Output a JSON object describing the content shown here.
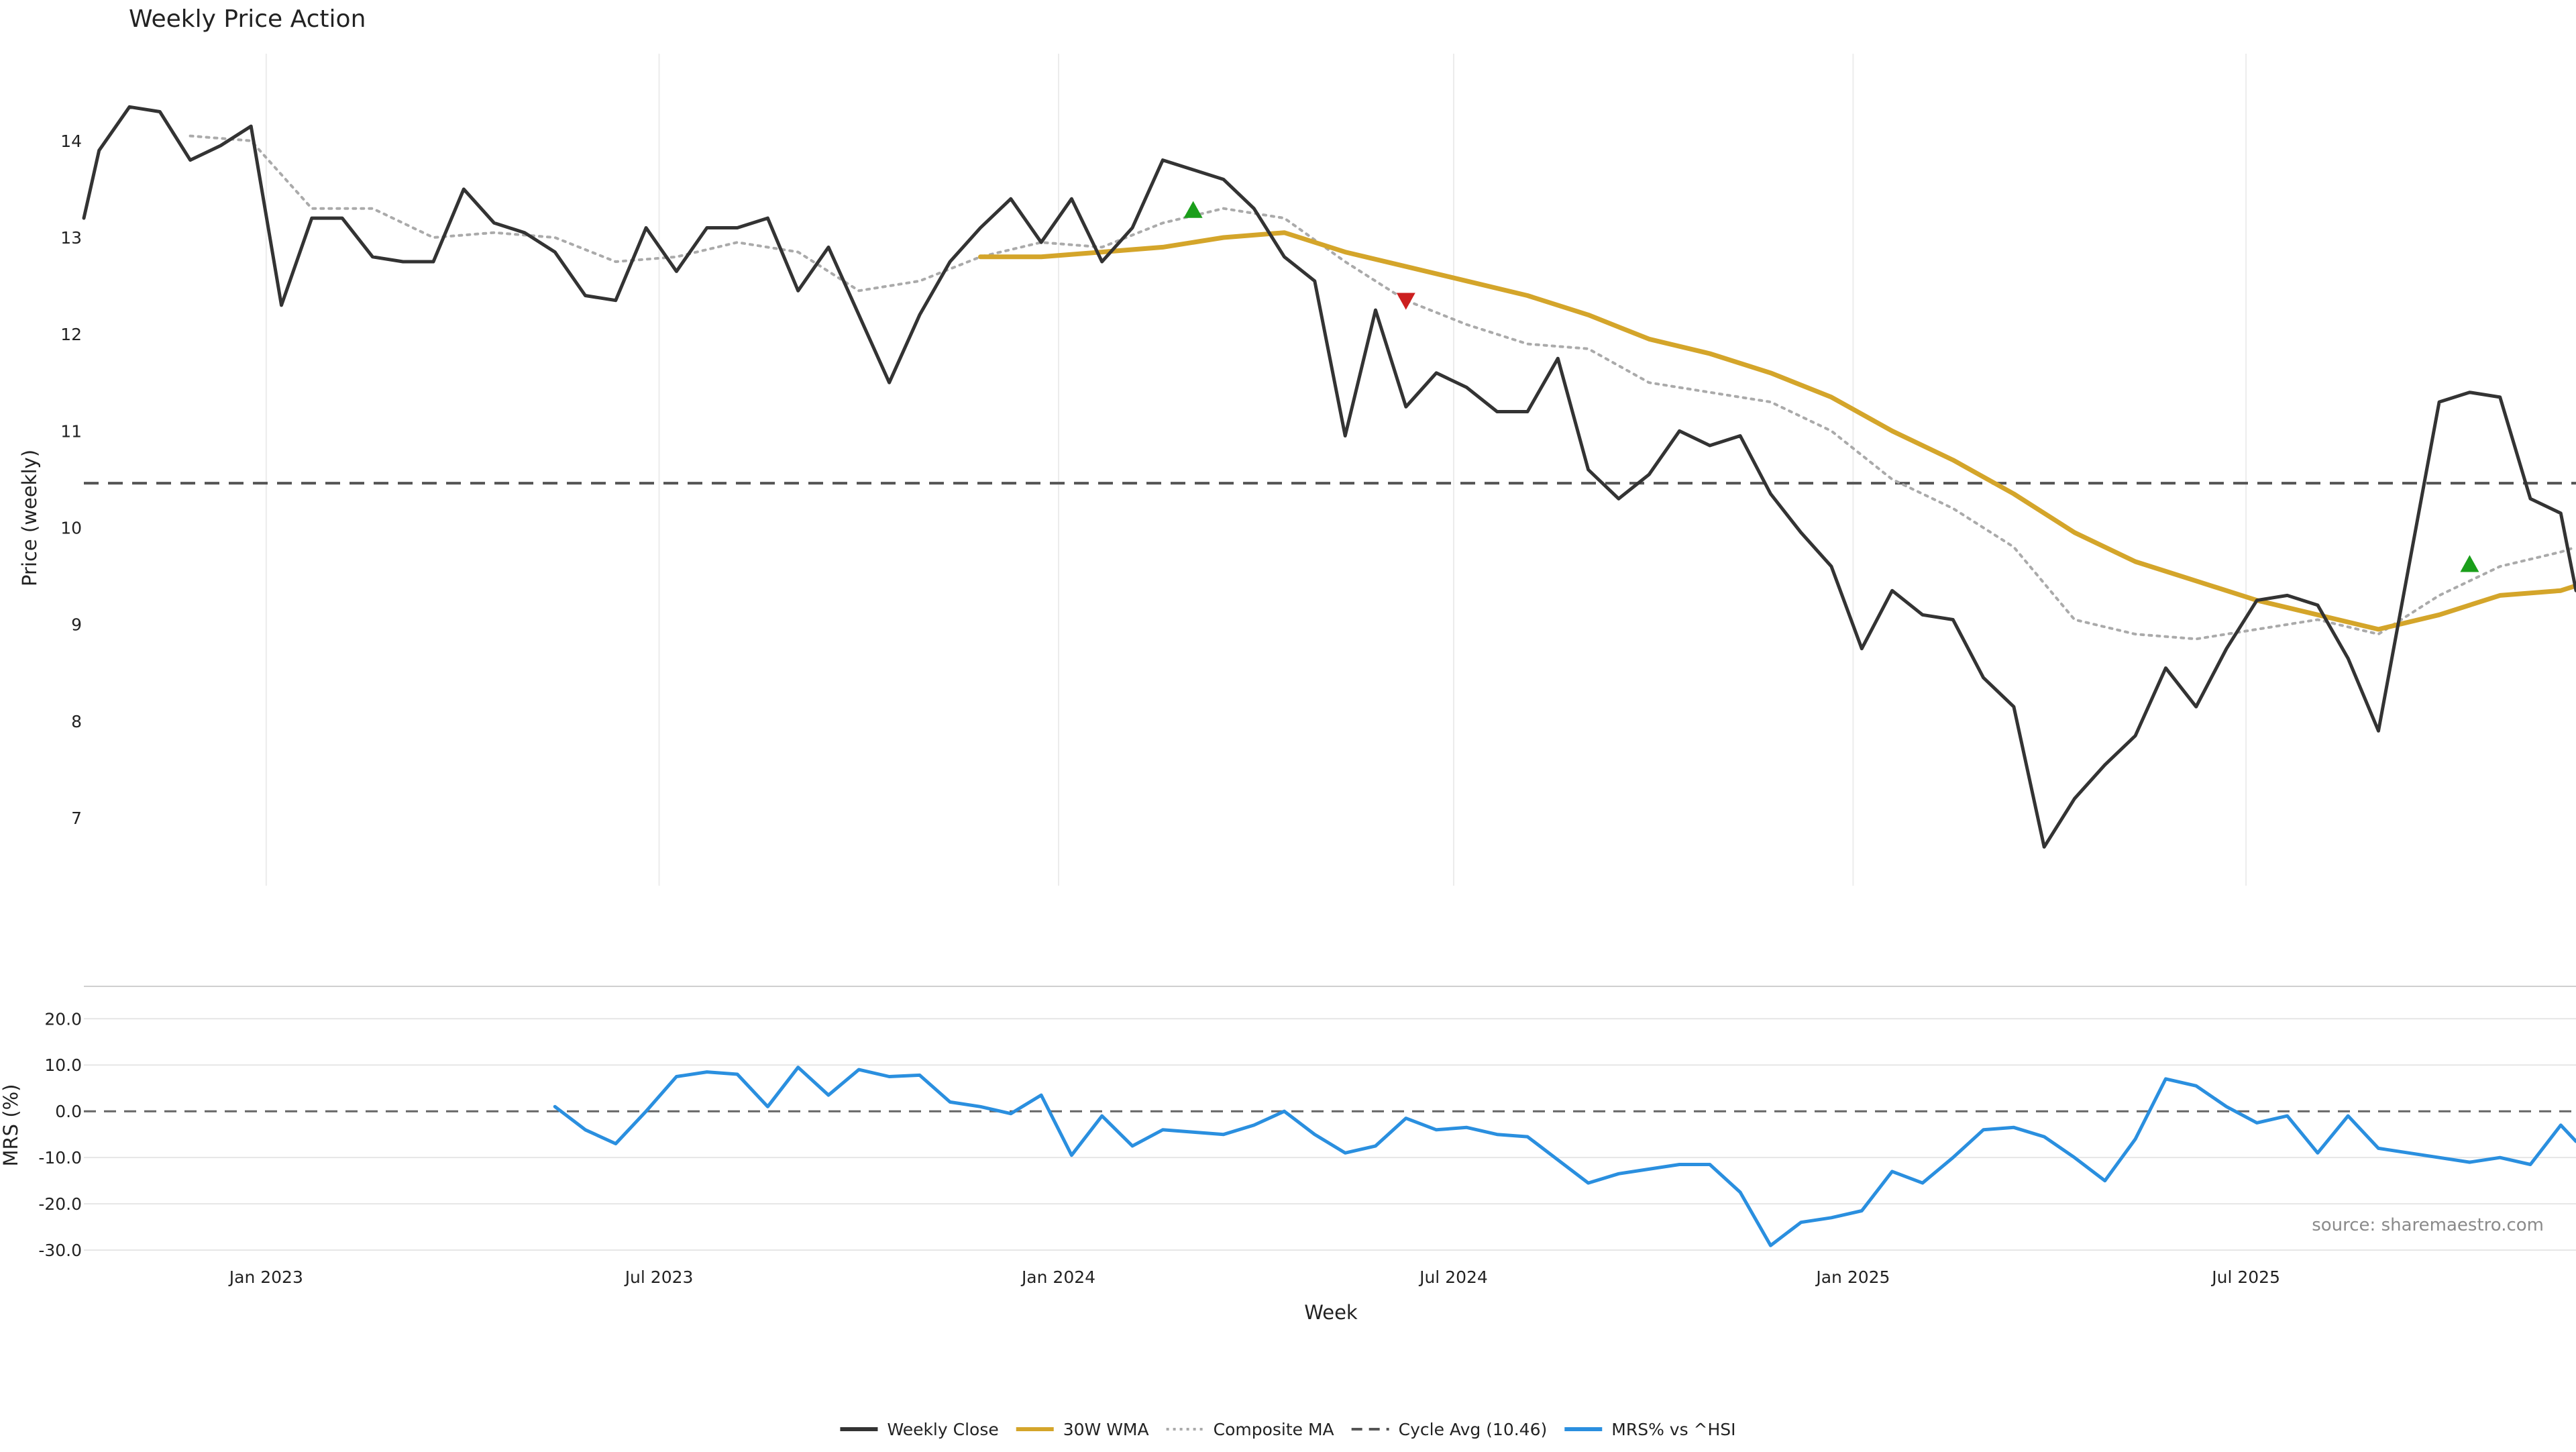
{
  "chart_data": {
    "type": "line",
    "title": "Weekly Price Action",
    "source": "source: sharemaestro.com",
    "xlabel": "Week",
    "x_tick_labels": [
      "Jan 2023",
      "Jul 2023",
      "Jan 2024",
      "Jul 2024",
      "Jan 2025",
      "Jul 2025"
    ],
    "x_tick_dates": [
      "2023-01-01",
      "2023-07-01",
      "2024-01-01",
      "2024-07-01",
      "2025-01-01",
      "2025-07-01"
    ],
    "x_range": [
      "2022-10-09",
      "2025-11-30"
    ],
    "grid": true,
    "legend_placement": "bottom-center",
    "price_panel": {
      "ylabel": "Price (weekly)",
      "ylim": [
        6.3,
        14.9
      ],
      "y_ticks": [
        7,
        8,
        9,
        10,
        11,
        12,
        13,
        14
      ],
      "cycle_avg": 10.46,
      "series": [
        {
          "name": "Weekly Close",
          "color": "#333333",
          "style": "solid",
          "points": [
            [
              "2022-10-09",
              13.2
            ],
            [
              "2022-10-16",
              13.9
            ],
            [
              "2022-10-30",
              14.35
            ],
            [
              "2022-11-13",
              14.3
            ],
            [
              "2022-11-27",
              13.8
            ],
            [
              "2022-12-11",
              13.95
            ],
            [
              "2022-12-25",
              14.15
            ],
            [
              "2023-01-08",
              12.3
            ],
            [
              "2023-01-22",
              13.2
            ],
            [
              "2023-02-05",
              13.2
            ],
            [
              "2023-02-19",
              12.8
            ],
            [
              "2023-03-05",
              12.75
            ],
            [
              "2023-03-19",
              12.75
            ],
            [
              "2023-04-02",
              13.5
            ],
            [
              "2023-04-16",
              13.15
            ],
            [
              "2023-04-30",
              13.05
            ],
            [
              "2023-05-14",
              12.85
            ],
            [
              "2023-05-28",
              12.4
            ],
            [
              "2023-06-11",
              12.35
            ],
            [
              "2023-06-25",
              13.1
            ],
            [
              "2023-07-09",
              12.65
            ],
            [
              "2023-07-23",
              13.1
            ],
            [
              "2023-08-06",
              13.1
            ],
            [
              "2023-08-20",
              13.2
            ],
            [
              "2023-09-03",
              12.45
            ],
            [
              "2023-09-17",
              12.9
            ],
            [
              "2023-10-01",
              12.2
            ],
            [
              "2023-10-15",
              11.5
            ],
            [
              "2023-10-29",
              12.2
            ],
            [
              "2023-11-12",
              12.75
            ],
            [
              "2023-11-26",
              13.1
            ],
            [
              "2023-12-10",
              13.4
            ],
            [
              "2023-12-24",
              12.95
            ],
            [
              "2024-01-07",
              13.4
            ],
            [
              "2024-01-21",
              12.75
            ],
            [
              "2024-02-04",
              13.1
            ],
            [
              "2024-02-18",
              13.8
            ],
            [
              "2024-03-03",
              13.7
            ],
            [
              "2024-03-17",
              13.6
            ],
            [
              "2024-03-31",
              13.3
            ],
            [
              "2024-04-14",
              12.8
            ],
            [
              "2024-04-28",
              12.55
            ],
            [
              "2024-05-12",
              10.95
            ],
            [
              "2024-05-26",
              12.25
            ],
            [
              "2024-06-09",
              11.25
            ],
            [
              "2024-06-23",
              11.6
            ],
            [
              "2024-07-07",
              11.45
            ],
            [
              "2024-07-21",
              11.2
            ],
            [
              "2024-08-04",
              11.2
            ],
            [
              "2024-08-18",
              11.75
            ],
            [
              "2024-09-01",
              10.6
            ],
            [
              "2024-09-15",
              10.3
            ],
            [
              "2024-09-29",
              10.55
            ],
            [
              "2024-10-13",
              11.0
            ],
            [
              "2024-10-27",
              10.85
            ],
            [
              "2024-11-10",
              10.95
            ],
            [
              "2024-11-24",
              10.35
            ],
            [
              "2024-12-08",
              9.95
            ],
            [
              "2024-12-22",
              9.6
            ],
            [
              "2025-01-05",
              8.75
            ],
            [
              "2025-01-19",
              9.35
            ],
            [
              "2025-02-02",
              9.1
            ],
            [
              "2025-02-16",
              9.05
            ],
            [
              "2025-03-02",
              8.45
            ],
            [
              "2025-03-16",
              8.15
            ],
            [
              "2025-03-30",
              6.7
            ],
            [
              "2025-04-13",
              7.2
            ],
            [
              "2025-04-27",
              7.55
            ],
            [
              "2025-05-11",
              7.85
            ],
            [
              "2025-05-25",
              8.55
            ],
            [
              "2025-06-08",
              8.15
            ],
            [
              "2025-06-22",
              8.75
            ],
            [
              "2025-07-06",
              9.25
            ],
            [
              "2025-07-20",
              9.3
            ],
            [
              "2025-08-03",
              9.2
            ],
            [
              "2025-08-17",
              8.65
            ],
            [
              "2025-08-31",
              7.9
            ],
            [
              "2025-09-14",
              9.6
            ],
            [
              "2025-09-28",
              11.3
            ],
            [
              "2025-10-12",
              11.4
            ],
            [
              "2025-10-26",
              11.35
            ],
            [
              "2025-11-09",
              10.3
            ],
            [
              "2025-11-23",
              10.15
            ],
            [
              "2025-11-30",
              9.35
            ]
          ]
        },
        {
          "name": "30W WMA",
          "color": "#d4a52a",
          "style": "solid",
          "points": [
            [
              "2023-11-26",
              12.8
            ],
            [
              "2023-12-24",
              12.8
            ],
            [
              "2024-01-21",
              12.85
            ],
            [
              "2024-02-18",
              12.9
            ],
            [
              "2024-03-17",
              13.0
            ],
            [
              "2024-04-14",
              13.05
            ],
            [
              "2024-05-12",
              12.85
            ],
            [
              "2024-06-09",
              12.7
            ],
            [
              "2024-07-07",
              12.55
            ],
            [
              "2024-08-04",
              12.4
            ],
            [
              "2024-09-01",
              12.2
            ],
            [
              "2024-09-29",
              11.95
            ],
            [
              "2024-10-27",
              11.8
            ],
            [
              "2024-11-24",
              11.6
            ],
            [
              "2024-12-22",
              11.35
            ],
            [
              "2025-01-19",
              11.0
            ],
            [
              "2025-02-16",
              10.7
            ],
            [
              "2025-03-16",
              10.35
            ],
            [
              "2025-04-13",
              9.95
            ],
            [
              "2025-05-11",
              9.65
            ],
            [
              "2025-06-08",
              9.45
            ],
            [
              "2025-07-06",
              9.25
            ],
            [
              "2025-08-03",
              9.1
            ],
            [
              "2025-08-31",
              8.95
            ],
            [
              "2025-09-28",
              9.1
            ],
            [
              "2025-10-26",
              9.3
            ],
            [
              "2025-11-23",
              9.35
            ],
            [
              "2025-11-30",
              9.4
            ]
          ]
        },
        {
          "name": "Composite MA",
          "color": "#aaaaaa",
          "style": "dotted",
          "points": [
            [
              "2022-11-27",
              14.05
            ],
            [
              "2022-12-25",
              14.0
            ],
            [
              "2023-01-22",
              13.3
            ],
            [
              "2023-02-19",
              13.3
            ],
            [
              "2023-03-19",
              13.0
            ],
            [
              "2023-04-16",
              13.05
            ],
            [
              "2023-05-14",
              13.0
            ],
            [
              "2023-06-11",
              12.75
            ],
            [
              "2023-07-09",
              12.8
            ],
            [
              "2023-08-06",
              12.95
            ],
            [
              "2023-09-03",
              12.85
            ],
            [
              "2023-10-01",
              12.45
            ],
            [
              "2023-10-29",
              12.55
            ],
            [
              "2023-11-26",
              12.8
            ],
            [
              "2023-12-24",
              12.95
            ],
            [
              "2024-01-21",
              12.9
            ],
            [
              "2024-02-18",
              13.15
            ],
            [
              "2024-03-17",
              13.3
            ],
            [
              "2024-04-14",
              13.2
            ],
            [
              "2024-05-12",
              12.75
            ],
            [
              "2024-06-09",
              12.35
            ],
            [
              "2024-07-07",
              12.1
            ],
            [
              "2024-08-04",
              11.9
            ],
            [
              "2024-09-01",
              11.85
            ],
            [
              "2024-09-29",
              11.5
            ],
            [
              "2024-10-27",
              11.4
            ],
            [
              "2024-11-24",
              11.3
            ],
            [
              "2024-12-22",
              11.0
            ],
            [
              "2025-01-19",
              10.5
            ],
            [
              "2025-02-16",
              10.2
            ],
            [
              "2025-03-16",
              9.8
            ],
            [
              "2025-04-13",
              9.05
            ],
            [
              "2025-05-11",
              8.9
            ],
            [
              "2025-06-08",
              8.85
            ],
            [
              "2025-07-06",
              8.95
            ],
            [
              "2025-08-03",
              9.05
            ],
            [
              "2025-08-31",
              8.9
            ],
            [
              "2025-09-28",
              9.3
            ],
            [
              "2025-10-26",
              9.6
            ],
            [
              "2025-11-23",
              9.75
            ],
            [
              "2025-11-30",
              9.8
            ]
          ]
        }
      ],
      "markers": [
        {
          "type": "buy",
          "color": "#1a9e1a",
          "date": "2024-03-03",
          "value": 13.28
        },
        {
          "type": "sell",
          "color": "#cc1f1f",
          "date": "2024-06-09",
          "value": 12.35
        },
        {
          "type": "buy",
          "color": "#1a9e1a",
          "date": "2025-10-12",
          "value": 9.62
        }
      ]
    },
    "mrs_panel": {
      "ylabel": "MRS (%)",
      "ylim": [
        -31,
        27
      ],
      "y_ticks": [
        -30,
        -20,
        -10,
        0,
        10,
        20
      ],
      "y_tick_labels": [
        "-30.0",
        "-20.0",
        "-10.0",
        "0.0",
        "10.0",
        "20.0"
      ],
      "series": [
        {
          "name": "MRS% vs ^HSI",
          "color": "#2a8fdf",
          "style": "solid",
          "points": [
            [
              "2023-05-14",
              1.0
            ],
            [
              "2023-05-28",
              -4.0
            ],
            [
              "2023-06-11",
              -7.0
            ],
            [
              "2023-06-25",
              0.0
            ],
            [
              "2023-07-09",
              7.5
            ],
            [
              "2023-07-23",
              8.5
            ],
            [
              "2023-08-06",
              8.0
            ],
            [
              "2023-08-20",
              1.0
            ],
            [
              "2023-09-03",
              9.5
            ],
            [
              "2023-09-17",
              3.5
            ],
            [
              "2023-10-01",
              9.0
            ],
            [
              "2023-10-15",
              7.5
            ],
            [
              "2023-10-29",
              7.8
            ],
            [
              "2023-11-12",
              2.0
            ],
            [
              "2023-11-26",
              1.0
            ],
            [
              "2023-12-10",
              -0.5
            ],
            [
              "2023-12-24",
              3.5
            ],
            [
              "2024-01-07",
              -9.5
            ],
            [
              "2024-01-21",
              -1.0
            ],
            [
              "2024-02-04",
              -7.5
            ],
            [
              "2024-02-18",
              -4.0
            ],
            [
              "2024-03-03",
              -4.5
            ],
            [
              "2024-03-17",
              -5.0
            ],
            [
              "2024-03-31",
              -3.0
            ],
            [
              "2024-04-14",
              0.0
            ],
            [
              "2024-04-28",
              -5.0
            ],
            [
              "2024-05-12",
              -9.0
            ],
            [
              "2024-05-26",
              -7.5
            ],
            [
              "2024-06-09",
              -1.5
            ],
            [
              "2024-06-23",
              -4.0
            ],
            [
              "2024-07-07",
              -3.5
            ],
            [
              "2024-07-21",
              -5.0
            ],
            [
              "2024-08-04",
              -5.5
            ],
            [
              "2024-08-18",
              -10.5
            ],
            [
              "2024-09-01",
              -15.5
            ],
            [
              "2024-09-15",
              -13.5
            ],
            [
              "2024-09-29",
              -12.5
            ],
            [
              "2024-10-13",
              -11.5
            ],
            [
              "2024-10-27",
              -11.5
            ],
            [
              "2024-11-10",
              -17.5
            ],
            [
              "2024-11-24",
              -29.0
            ],
            [
              "2024-12-08",
              -24.0
            ],
            [
              "2024-12-22",
              -23.0
            ],
            [
              "2025-01-05",
              -21.5
            ],
            [
              "2025-01-19",
              -13.0
            ],
            [
              "2025-02-02",
              -15.5
            ],
            [
              "2025-02-16",
              -10.0
            ],
            [
              "2025-03-02",
              -4.0
            ],
            [
              "2025-03-16",
              -3.5
            ],
            [
              "2025-03-30",
              -5.5
            ],
            [
              "2025-04-13",
              -10.0
            ],
            [
              "2025-04-27",
              -15.0
            ],
            [
              "2025-05-11",
              -6.0
            ],
            [
              "2025-05-25",
              7.0
            ],
            [
              "2025-06-08",
              5.5
            ],
            [
              "2025-06-22",
              1.0
            ],
            [
              "2025-07-06",
              -2.5
            ],
            [
              "2025-07-20",
              -1.0
            ],
            [
              "2025-08-03",
              -9.0
            ],
            [
              "2025-08-17",
              -1.0
            ],
            [
              "2025-08-31",
              -8.0
            ],
            [
              "2025-09-14",
              -9.0
            ],
            [
              "2025-09-28",
              -10.0
            ],
            [
              "2025-10-12",
              -11.0
            ],
            [
              "2025-10-26",
              -10.0
            ],
            [
              "2025-11-09",
              -11.5
            ],
            [
              "2025-11-23",
              -3.0
            ],
            [
              "2025-11-30",
              -6.5
            ]
          ]
        }
      ]
    },
    "legend": [
      {
        "label": "Weekly Close",
        "color": "#333333",
        "style": "solid"
      },
      {
        "label": "30W WMA",
        "color": "#d4a52a",
        "style": "solid"
      },
      {
        "label": "Composite MA",
        "color": "#aaaaaa",
        "style": "dotted"
      },
      {
        "label": "Cycle Avg (10.46)",
        "color": "#555555",
        "style": "dashed"
      },
      {
        "label": "MRS% vs ^HSI",
        "color": "#2a8fdf",
        "style": "solid"
      }
    ]
  }
}
